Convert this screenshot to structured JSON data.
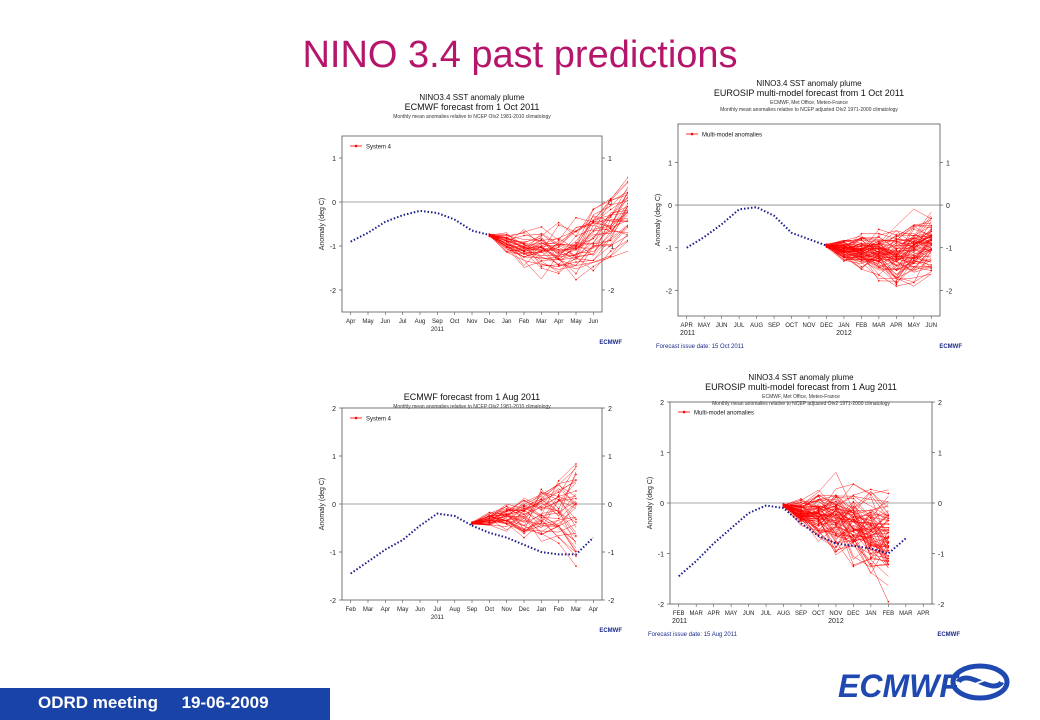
{
  "slide": {
    "title": "NINO 3.4 past predictions",
    "footer": "ODRD meeting     19-06-2009",
    "brand": "ECMWF"
  },
  "colors": {
    "title": "#b5166b",
    "footer_bar": "#1a43a8",
    "brand": "#1f49b0",
    "ensemble": "#ff0000",
    "observed": "#1a1a8c",
    "zero_line": "#888888"
  },
  "chart_data": [
    {
      "type": "line",
      "title": "NINO3.4 SST anomaly plume",
      "subtitle": "ECMWF forecast from 1 Oct 2011",
      "note": "Monthly mean anomalies relative to NCEP OIv2 1981-2010 climatology",
      "ylabel": "Anomaly (deg C)",
      "ylim": [
        -2.5,
        1.5
      ],
      "yticks": [
        "1",
        "0",
        "-1",
        "-2"
      ],
      "ytick_values": [
        1,
        0,
        -1,
        -2
      ],
      "x_ticks": [
        "Apr",
        "May",
        "Jun",
        "Jul",
        "Aug",
        "Sep",
        "Oct",
        "Nov",
        "Dec",
        "Jan",
        "Feb",
        "Mar",
        "Apr",
        "May",
        "Jun"
      ],
      "x_year_labels": [
        "2011"
      ],
      "legend": "System 4",
      "grid": false,
      "observed": [
        -0.9,
        -0.7,
        -0.45,
        -0.3,
        -0.2,
        -0.25,
        -0.4,
        -0.65,
        -0.75
      ],
      "ensemble_start": 8,
      "ensemble_mean": [
        -0.75,
        -0.95,
        -1.05,
        -1.1,
        -1.12,
        -1.05,
        -0.8,
        -0.5,
        -0.2
      ],
      "ensemble_members": 41,
      "ensemble_spread": [
        0.05,
        0.3,
        0.45,
        0.55,
        0.6,
        0.6,
        0.6,
        0.6,
        0.55
      ],
      "issue_date": "",
      "logo": "ECMWF"
    },
    {
      "type": "line",
      "title": "NINO3.4 SST anomaly plume",
      "subtitle": "EUROSIP multi-model forecast from 1 Oct 2011",
      "note2": "ECMWF, Met Office, Meteo-France",
      "note": "Monthly mean anomalies relative to NCEP adjusted OIv2 1971-2000 climatology",
      "ylabel": "Anomaly (deg C)",
      "ylim": [
        -2.6,
        1.9
      ],
      "yticks": [
        "1",
        "0",
        "-1",
        "-2"
      ],
      "ytick_values": [
        1,
        0,
        -1,
        -2
      ],
      "x_ticks": [
        "APR",
        "MAY",
        "JUN",
        "JUL",
        "AUG",
        "SEP",
        "OCT",
        "NOV",
        "DEC",
        "JAN",
        "FEB",
        "MAR",
        "APR",
        "MAY",
        "JUN"
      ],
      "x_year_labels": [
        "2011",
        "2012"
      ],
      "legend": "Multi-model anomalies",
      "grid": false,
      "observed": [
        -1.0,
        -0.75,
        -0.45,
        -0.1,
        -0.05,
        -0.25,
        -0.65,
        -0.8,
        -0.95
      ],
      "ensemble_start": 8,
      "ensemble_mean": [
        -0.95,
        -1.05,
        -1.1,
        -1.15,
        -1.2,
        -1.1,
        -0.95
      ],
      "ensemble_members": 80,
      "ensemble_spread": [
        0.05,
        0.35,
        0.45,
        0.55,
        0.6,
        0.6,
        0.6
      ],
      "issue_date": "Forecast issue date: 15 Oct 2011",
      "logo": "ECMWF"
    },
    {
      "type": "line",
      "title": "",
      "subtitle": "ECMWF forecast from 1 Aug 2011",
      "note": "Monthly mean anomalies relative to NCEP OIv2 1981-2010 climatology",
      "ylabel": "Anomaly (deg C)",
      "ylim": [
        -2,
        2
      ],
      "yticks": [
        "2",
        "1",
        "0",
        "-1",
        "-2"
      ],
      "ytick_values": [
        2,
        1,
        0,
        -1,
        -2
      ],
      "x_ticks": [
        "Feb",
        "Mar",
        "Apr",
        "May",
        "Jun",
        "Jul",
        "Aug",
        "Sep",
        "Oct",
        "Nov",
        "Dec",
        "Jan",
        "Feb",
        "Mar",
        "Apr"
      ],
      "x_year_labels": [
        "2011"
      ],
      "legend": "System 4",
      "grid": false,
      "observed": [
        -1.45,
        -1.2,
        -0.95,
        -0.75,
        -0.45,
        -0.2,
        -0.25,
        -0.45
      ],
      "ensemble_start": 7,
      "ensemble_mean": [
        -0.4,
        -0.3,
        -0.25,
        -0.2,
        -0.15,
        -0.1,
        -0.05
      ],
      "ensemble_members": 41,
      "ensemble_spread": [
        0.05,
        0.2,
        0.45,
        0.6,
        0.75,
        0.85,
        0.95
      ],
      "observed_continuation": [
        -0.45,
        -0.6,
        -0.7,
        -0.85,
        -1.0,
        -1.05,
        -1.05,
        -0.7
      ],
      "issue_date": "",
      "logo": "ECMWF"
    },
    {
      "type": "line",
      "title": "NINO3.4 SST anomaly plume",
      "subtitle": "EUROSIP multi-model forecast from 1 Aug 2011",
      "note2": "ECMWF, Met Office, Meteo-France",
      "note": "Monthly mean anomalies relative to NCEP adjusted OIv2 1971-2000 climatology",
      "ylabel": "Anomaly (deg C)",
      "ylim": [
        -2,
        2
      ],
      "yticks": [
        "2",
        "1",
        "0",
        "-1",
        "-2"
      ],
      "ytick_values": [
        2,
        1,
        0,
        -1,
        -2
      ],
      "x_ticks": [
        "FEB",
        "MAR",
        "APR",
        "MAY",
        "JUN",
        "JUL",
        "AUG",
        "SEP",
        "OCT",
        "NOV",
        "DEC",
        "JAN",
        "FEB",
        "MAR",
        "APR"
      ],
      "x_year_labels": [
        "2011",
        "2012"
      ],
      "legend": "Multi-model anomalies",
      "grid": false,
      "observed": [
        -1.45,
        -1.15,
        -0.8,
        -0.5,
        -0.2,
        -0.05,
        -0.1,
        -0.4,
        -0.65,
        -0.8,
        -0.85,
        -0.9,
        -1.0,
        -0.7
      ],
      "ensemble_start": 6,
      "ensemble_mean": [
        -0.05,
        -0.2,
        -0.3,
        -0.35,
        -0.45,
        -0.6,
        -0.7
      ],
      "ensemble_members": 80,
      "ensemble_spread": [
        0.05,
        0.35,
        0.6,
        0.75,
        0.8,
        0.8,
        0.8
      ],
      "issue_date": "Forecast issue date: 15 Aug 2011",
      "logo": "ECMWF"
    }
  ]
}
